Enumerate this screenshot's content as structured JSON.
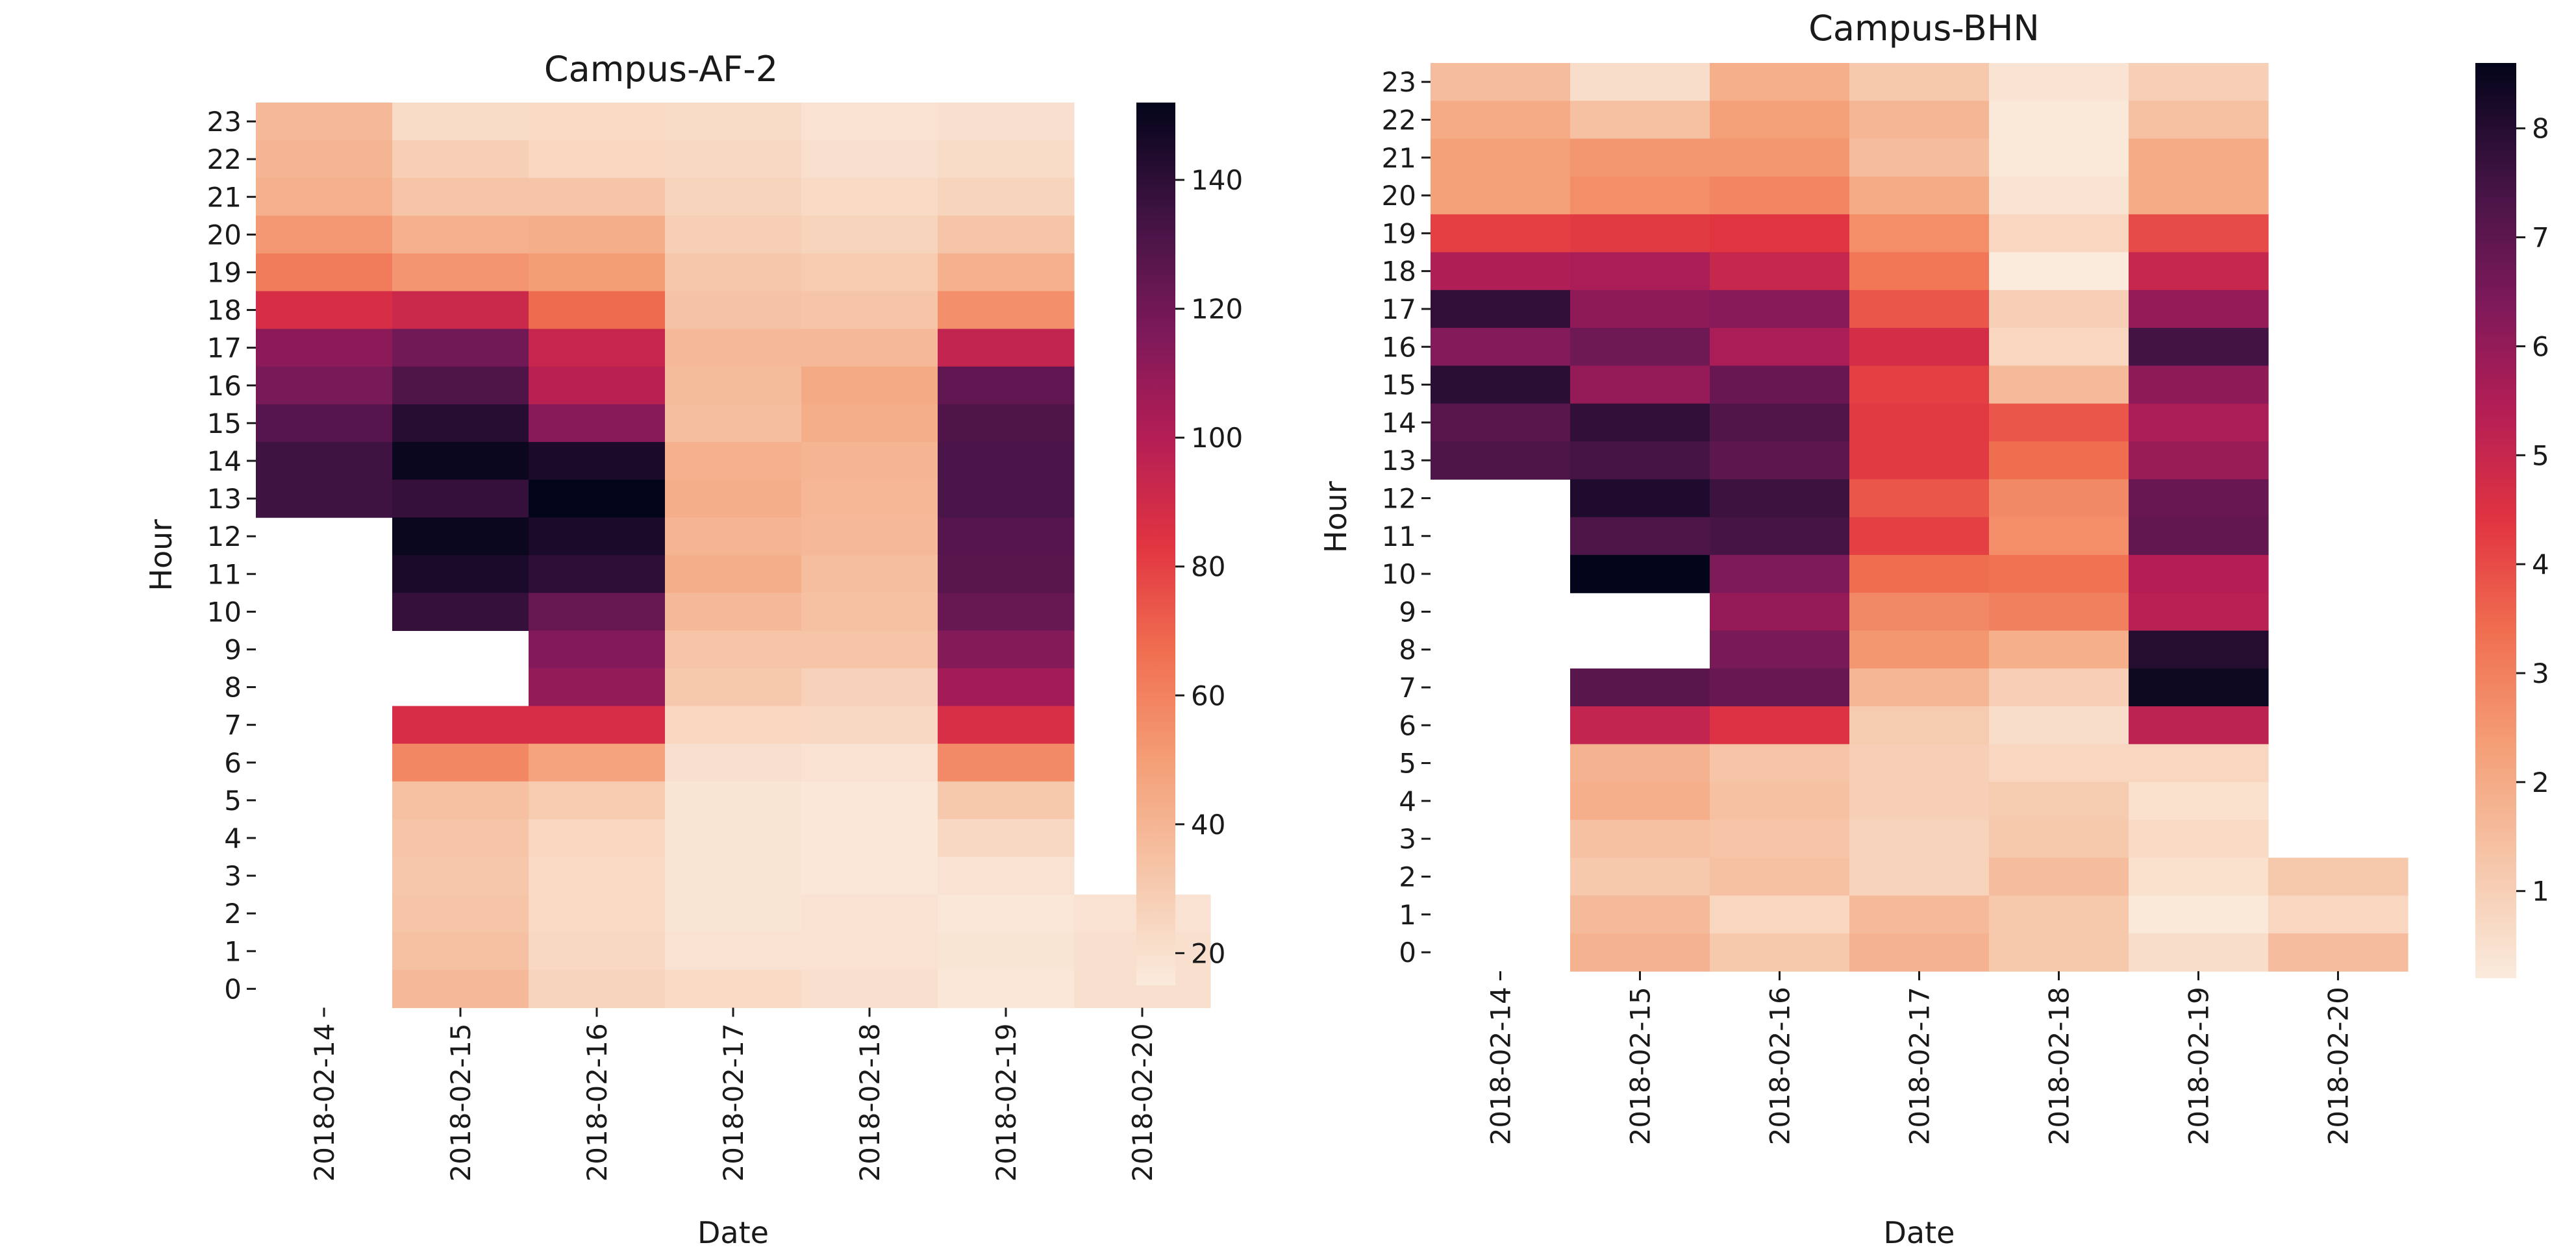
{
  "chart_data": [
    {
      "type": "heatmap",
      "title": "Campus-AF-2",
      "xlabel": "Date",
      "ylabel": "Hour",
      "x_categories": [
        "2018-02-14",
        "2018-02-15",
        "2018-02-16",
        "2018-02-17",
        "2018-02-18",
        "2018-02-19",
        "2018-02-20"
      ],
      "y_categories": [
        "23",
        "22",
        "21",
        "20",
        "19",
        "18",
        "17",
        "16",
        "15",
        "14",
        "13",
        "12",
        "11",
        "10",
        "9",
        "8",
        "7",
        "6",
        "5",
        "4",
        "3",
        "2",
        "1",
        "0"
      ],
      "colorbar": {
        "range": [
          15,
          152
        ],
        "ticks": [
          20,
          40,
          60,
          80,
          100,
          120,
          140
        ]
      },
      "values": [
        [
          38,
          22,
          23,
          22,
          19,
          20,
          null
        ],
        [
          40,
          28,
          25,
          24,
          20,
          22,
          null
        ],
        [
          42,
          33,
          33,
          26,
          23,
          26,
          null
        ],
        [
          52,
          42,
          43,
          28,
          26,
          33,
          null
        ],
        [
          62,
          53,
          50,
          32,
          30,
          42,
          null
        ],
        [
          88,
          92,
          68,
          34,
          33,
          55,
          null
        ],
        [
          112,
          120,
          93,
          38,
          38,
          95,
          null
        ],
        [
          118,
          130,
          98,
          37,
          45,
          125,
          null
        ],
        [
          128,
          142,
          113,
          36,
          43,
          130,
          null
        ],
        [
          135,
          150,
          145,
          42,
          40,
          132,
          null
        ],
        [
          135,
          138,
          152,
          43,
          39,
          132,
          null
        ],
        [
          null,
          150,
          145,
          40,
          38,
          128,
          null
        ],
        [
          null,
          145,
          140,
          43,
          36,
          127,
          null
        ],
        [
          null,
          138,
          123,
          38,
          35,
          123,
          null
        ],
        [
          null,
          null,
          115,
          33,
          33,
          114,
          null
        ],
        [
          null,
          null,
          110,
          31,
          27,
          105,
          null
        ],
        [
          null,
          88,
          88,
          25,
          24,
          87,
          null
        ],
        [
          null,
          58,
          48,
          20,
          19,
          57,
          null
        ],
        [
          null,
          35,
          30,
          18,
          17,
          31,
          null
        ],
        [
          null,
          33,
          25,
          18,
          17,
          24,
          null
        ],
        [
          null,
          32,
          23,
          18,
          17,
          19,
          null
        ],
        [
          null,
          33,
          23,
          18,
          19,
          17,
          19
        ],
        [
          null,
          35,
          24,
          19,
          19,
          18,
          20
        ],
        [
          null,
          38,
          26,
          23,
          20,
          17,
          20
        ]
      ]
    },
    {
      "type": "heatmap",
      "title": "Campus-BHN",
      "xlabel": "Date",
      "ylabel": "Hour",
      "x_categories": [
        "2018-02-14",
        "2018-02-15",
        "2018-02-16",
        "2018-02-17",
        "2018-02-18",
        "2018-02-19",
        "2018-02-20"
      ],
      "y_categories": [
        "23",
        "22",
        "21",
        "20",
        "19",
        "18",
        "17",
        "16",
        "15",
        "14",
        "13",
        "12",
        "11",
        "10",
        "9",
        "8",
        "7",
        "6",
        "5",
        "4",
        "3",
        "2",
        "1",
        "0"
      ],
      "colorbar": {
        "range": [
          0.2,
          8.6
        ],
        "ticks": [
          1,
          2,
          3,
          4,
          5,
          6,
          7,
          8
        ]
      },
      "values": [
        [
          1.5,
          0.6,
          1.9,
          1.2,
          0.4,
          1.0,
          null
        ],
        [
          2.0,
          1.4,
          2.3,
          1.7,
          0.3,
          1.4,
          null
        ],
        [
          2.3,
          2.5,
          2.5,
          1.5,
          0.3,
          2.0,
          null
        ],
        [
          2.3,
          2.7,
          2.9,
          2.0,
          0.4,
          2.0,
          null
        ],
        [
          4.2,
          4.3,
          4.4,
          2.7,
          0.8,
          4.0,
          null
        ],
        [
          5.5,
          5.6,
          5.0,
          3.2,
          0.2,
          5.0,
          null
        ],
        [
          7.8,
          6.1,
          6.2,
          3.8,
          1.0,
          6.0,
          null
        ],
        [
          6.3,
          6.7,
          5.6,
          4.7,
          0.8,
          7.5,
          null
        ],
        [
          7.9,
          6.0,
          6.8,
          4.2,
          1.6,
          6.1,
          null
        ],
        [
          7.1,
          7.8,
          7.2,
          4.3,
          3.8,
          5.6,
          null
        ],
        [
          7.3,
          7.4,
          7.0,
          4.3,
          3.4,
          5.9,
          null
        ],
        [
          null,
          8.1,
          7.6,
          3.8,
          2.8,
          6.8,
          null
        ],
        [
          null,
          7.3,
          7.4,
          4.2,
          2.7,
          6.9,
          null
        ],
        [
          null,
          8.6,
          6.4,
          3.4,
          3.3,
          5.4,
          null
        ],
        [
          null,
          null,
          6.0,
          2.8,
          3.0,
          5.3,
          null
        ],
        [
          null,
          null,
          6.5,
          2.5,
          1.9,
          8.0,
          null
        ],
        [
          null,
          7.1,
          6.8,
          1.7,
          1.0,
          8.4,
          null
        ],
        [
          null,
          5.1,
          4.5,
          1.1,
          0.6,
          5.2,
          null
        ],
        [
          null,
          1.8,
          1.3,
          1.0,
          0.8,
          0.8,
          null
        ],
        [
          null,
          1.9,
          1.4,
          1.0,
          1.1,
          0.5,
          null
        ],
        [
          null,
          1.4,
          1.3,
          0.9,
          1.2,
          0.7,
          null
        ],
        [
          null,
          1.2,
          1.4,
          0.9,
          1.5,
          0.5,
          1.2
        ],
        [
          null,
          1.6,
          0.8,
          1.6,
          1.2,
          0.3,
          0.8
        ],
        [
          null,
          1.8,
          1.2,
          1.8,
          1.2,
          0.6,
          1.5
        ]
      ]
    }
  ]
}
